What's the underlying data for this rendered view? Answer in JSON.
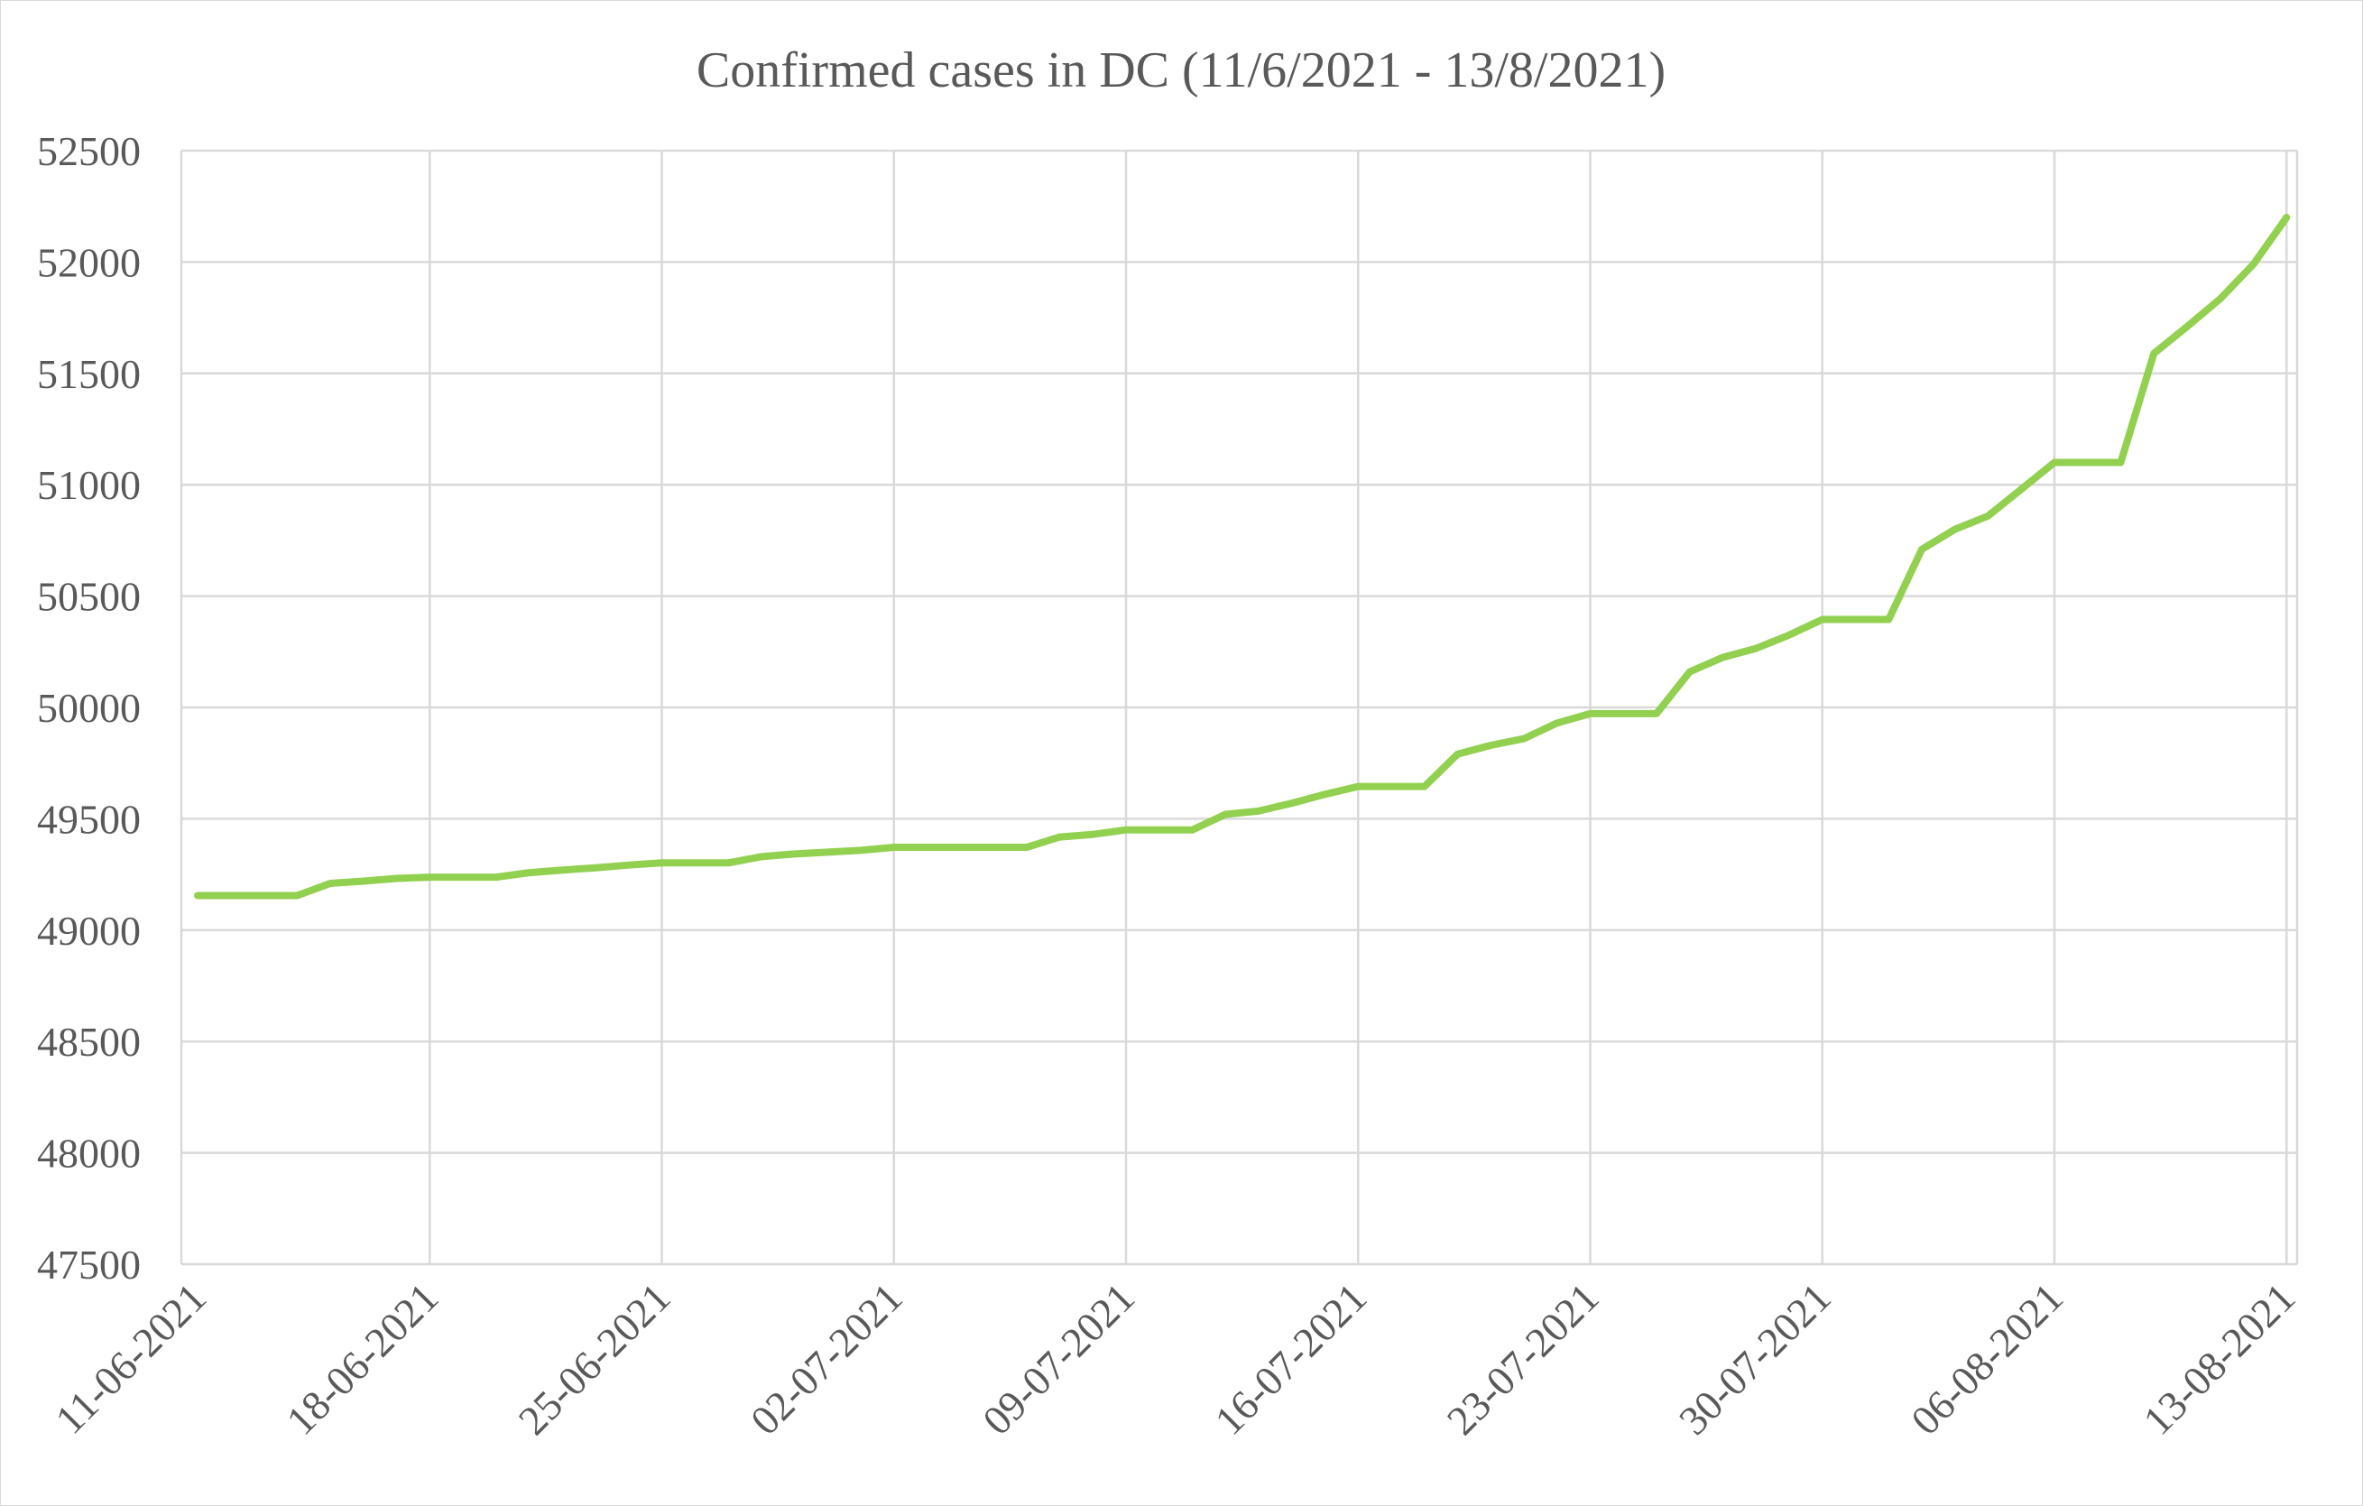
{
  "chart_data": {
    "type": "line",
    "title": "Confirmed cases in DC (11/6/2021 - 13/8/2021)",
    "xlabel": "",
    "ylabel": "",
    "ylim": [
      47500,
      52500
    ],
    "y_ticks": [
      "52500",
      "52000",
      "51500",
      "51000",
      "50500",
      "50000",
      "49500",
      "49000",
      "48500",
      "48000",
      "47500"
    ],
    "x_tick_labels": [
      "11-06-2021",
      "18-06-2021",
      "25-06-2021",
      "02-07-2021",
      "09-07-2021",
      "16-07-2021",
      "23-07-2021",
      "30-07-2021",
      "06-08-2021",
      "13-08-2021"
    ],
    "grid": true,
    "legend": "none",
    "line_color": "#92d050",
    "x": [
      "2021-06-11",
      "2021-06-12",
      "2021-06-13",
      "2021-06-14",
      "2021-06-15",
      "2021-06-16",
      "2021-06-17",
      "2021-06-18",
      "2021-06-19",
      "2021-06-20",
      "2021-06-21",
      "2021-06-22",
      "2021-06-23",
      "2021-06-24",
      "2021-06-25",
      "2021-06-26",
      "2021-06-27",
      "2021-06-28",
      "2021-06-29",
      "2021-06-30",
      "2021-07-01",
      "2021-07-02",
      "2021-07-03",
      "2021-07-04",
      "2021-07-05",
      "2021-07-06",
      "2021-07-07",
      "2021-07-08",
      "2021-07-09",
      "2021-07-10",
      "2021-07-11",
      "2021-07-12",
      "2021-07-13",
      "2021-07-14",
      "2021-07-15",
      "2021-07-16",
      "2021-07-17",
      "2021-07-18",
      "2021-07-19",
      "2021-07-20",
      "2021-07-21",
      "2021-07-22",
      "2021-07-23",
      "2021-07-24",
      "2021-07-25",
      "2021-07-26",
      "2021-07-27",
      "2021-07-28",
      "2021-07-29",
      "2021-07-30",
      "2021-07-31",
      "2021-08-01",
      "2021-08-02",
      "2021-08-03",
      "2021-08-04",
      "2021-08-05",
      "2021-08-06",
      "2021-08-07",
      "2021-08-08",
      "2021-08-09",
      "2021-08-10",
      "2021-08-11",
      "2021-08-12",
      "2021-08-13"
    ],
    "series": [
      {
        "values": [
          49155,
          49155,
          49155,
          49155,
          49210,
          49220,
          49232,
          49238,
          49238,
          49238,
          49258,
          49270,
          49280,
          49292,
          49302,
          49302,
          49302,
          49330,
          49342,
          49350,
          49358,
          49372,
          49372,
          49372,
          49372,
          49372,
          49418,
          49430,
          49450,
          49450,
          49450,
          49520,
          49535,
          49570,
          49610,
          49645,
          49645,
          49645,
          49790,
          49830,
          49860,
          49930,
          49972,
          49972,
          49972,
          50160,
          50225,
          50265,
          50325,
          50395,
          50395,
          50395,
          50710,
          50800,
          50860,
          50980,
          51100,
          51100,
          51100,
          51590,
          51710,
          51835,
          51990,
          52200
        ]
      }
    ]
  }
}
